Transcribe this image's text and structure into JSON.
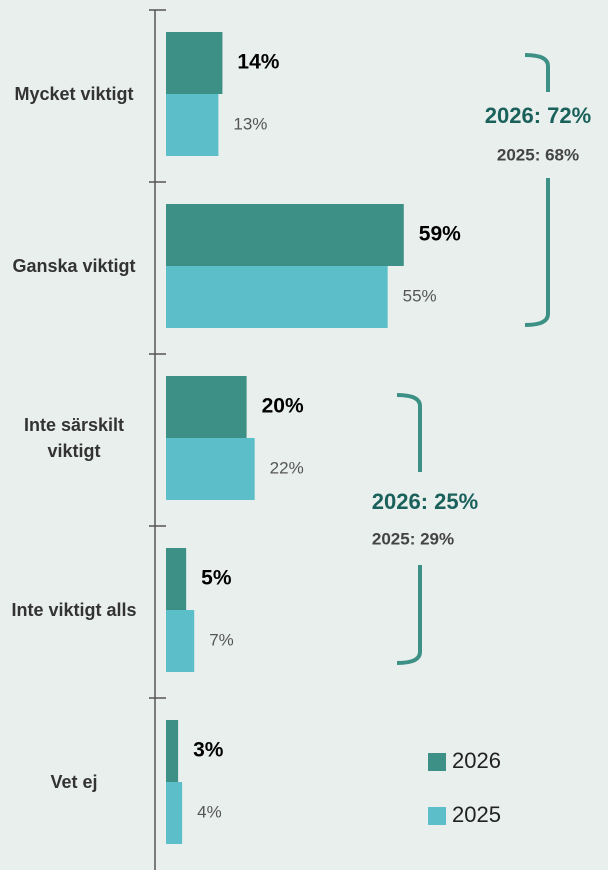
{
  "chart_data": {
    "type": "bar",
    "orientation": "horizontal",
    "categories": [
      "Mycket viktigt",
      "Ganska viktigt",
      "Inte särskilt viktigt",
      "Inte viktigt alls",
      "Vet ej"
    ],
    "series": [
      {
        "name": "2026",
        "color": "#3d9085",
        "values": [
          14,
          59,
          20,
          5,
          3
        ],
        "value_labels": [
          "14%",
          "59%",
          "20%",
          "5%",
          "3%"
        ]
      },
      {
        "name": "2025",
        "color": "#5bbec8",
        "values": [
          13,
          55,
          22,
          7,
          4
        ],
        "value_labels": [
          "13%",
          "55%",
          "22%",
          "7%",
          "4%"
        ]
      }
    ],
    "annotations": [
      "2026: 72%",
      "2025: 68%",
      "2026: 25%",
      "2025: 29%"
    ],
    "legend": "bottom-right"
  }
}
